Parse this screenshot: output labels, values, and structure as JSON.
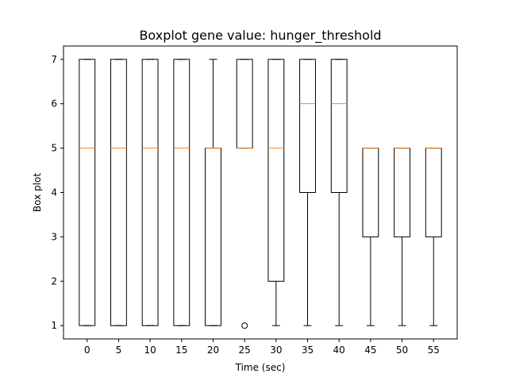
{
  "chart_data": {
    "type": "boxplot",
    "title": "Boxplot gene value: hunger_threshold",
    "xlabel": "Time (sec)",
    "ylabel": "Box plot",
    "categories": [
      "0",
      "5",
      "10",
      "15",
      "20",
      "25",
      "30",
      "35",
      "40",
      "45",
      "50",
      "55"
    ],
    "ylim": [
      0.7,
      7.3
    ],
    "yticks": [
      1,
      2,
      3,
      4,
      5,
      6,
      7
    ],
    "grid": false,
    "boxes": [
      {
        "category": "0",
        "whisker_low": 1,
        "q1": 1,
        "median": 5,
        "q3": 7,
        "whisker_high": 7,
        "outliers": []
      },
      {
        "category": "5",
        "whisker_low": 1,
        "q1": 1,
        "median": 5,
        "q3": 7,
        "whisker_high": 7,
        "outliers": []
      },
      {
        "category": "10",
        "whisker_low": 1,
        "q1": 1,
        "median": 5,
        "q3": 7,
        "whisker_high": 7,
        "outliers": []
      },
      {
        "category": "15",
        "whisker_low": 1,
        "q1": 1,
        "median": 5,
        "q3": 7,
        "whisker_high": 7,
        "outliers": []
      },
      {
        "category": "20",
        "whisker_low": 1,
        "q1": 1,
        "median": 5,
        "q3": 5,
        "whisker_high": 7,
        "outliers": []
      },
      {
        "category": "25",
        "whisker_low": 5,
        "q1": 5,
        "median": 5,
        "q3": 7,
        "whisker_high": 7,
        "outliers": [
          1
        ]
      },
      {
        "category": "30",
        "whisker_low": 1,
        "q1": 2,
        "median": 5,
        "q3": 7,
        "whisker_high": 7,
        "outliers": []
      },
      {
        "category": "35",
        "whisker_low": 1,
        "q1": 4,
        "median": 6,
        "q3": 7,
        "whisker_high": 7,
        "outliers": []
      },
      {
        "category": "40",
        "whisker_low": 1,
        "q1": 4,
        "median": 6,
        "q3": 7,
        "whisker_high": 7,
        "outliers": []
      },
      {
        "category": "45",
        "whisker_low": 1,
        "q1": 3,
        "median": 5,
        "q3": 5,
        "whisker_high": 5,
        "outliers": []
      },
      {
        "category": "50",
        "whisker_low": 1,
        "q1": 3,
        "median": 5,
        "q3": 5,
        "whisker_high": 5,
        "outliers": []
      },
      {
        "category": "55",
        "whisker_low": 1,
        "q1": 3,
        "median": 5,
        "q3": 5,
        "whisker_high": 5,
        "outliers": []
      }
    ],
    "colors": {
      "box": "#000000",
      "median": "#ff7f0e",
      "background": "#ffffff"
    }
  }
}
